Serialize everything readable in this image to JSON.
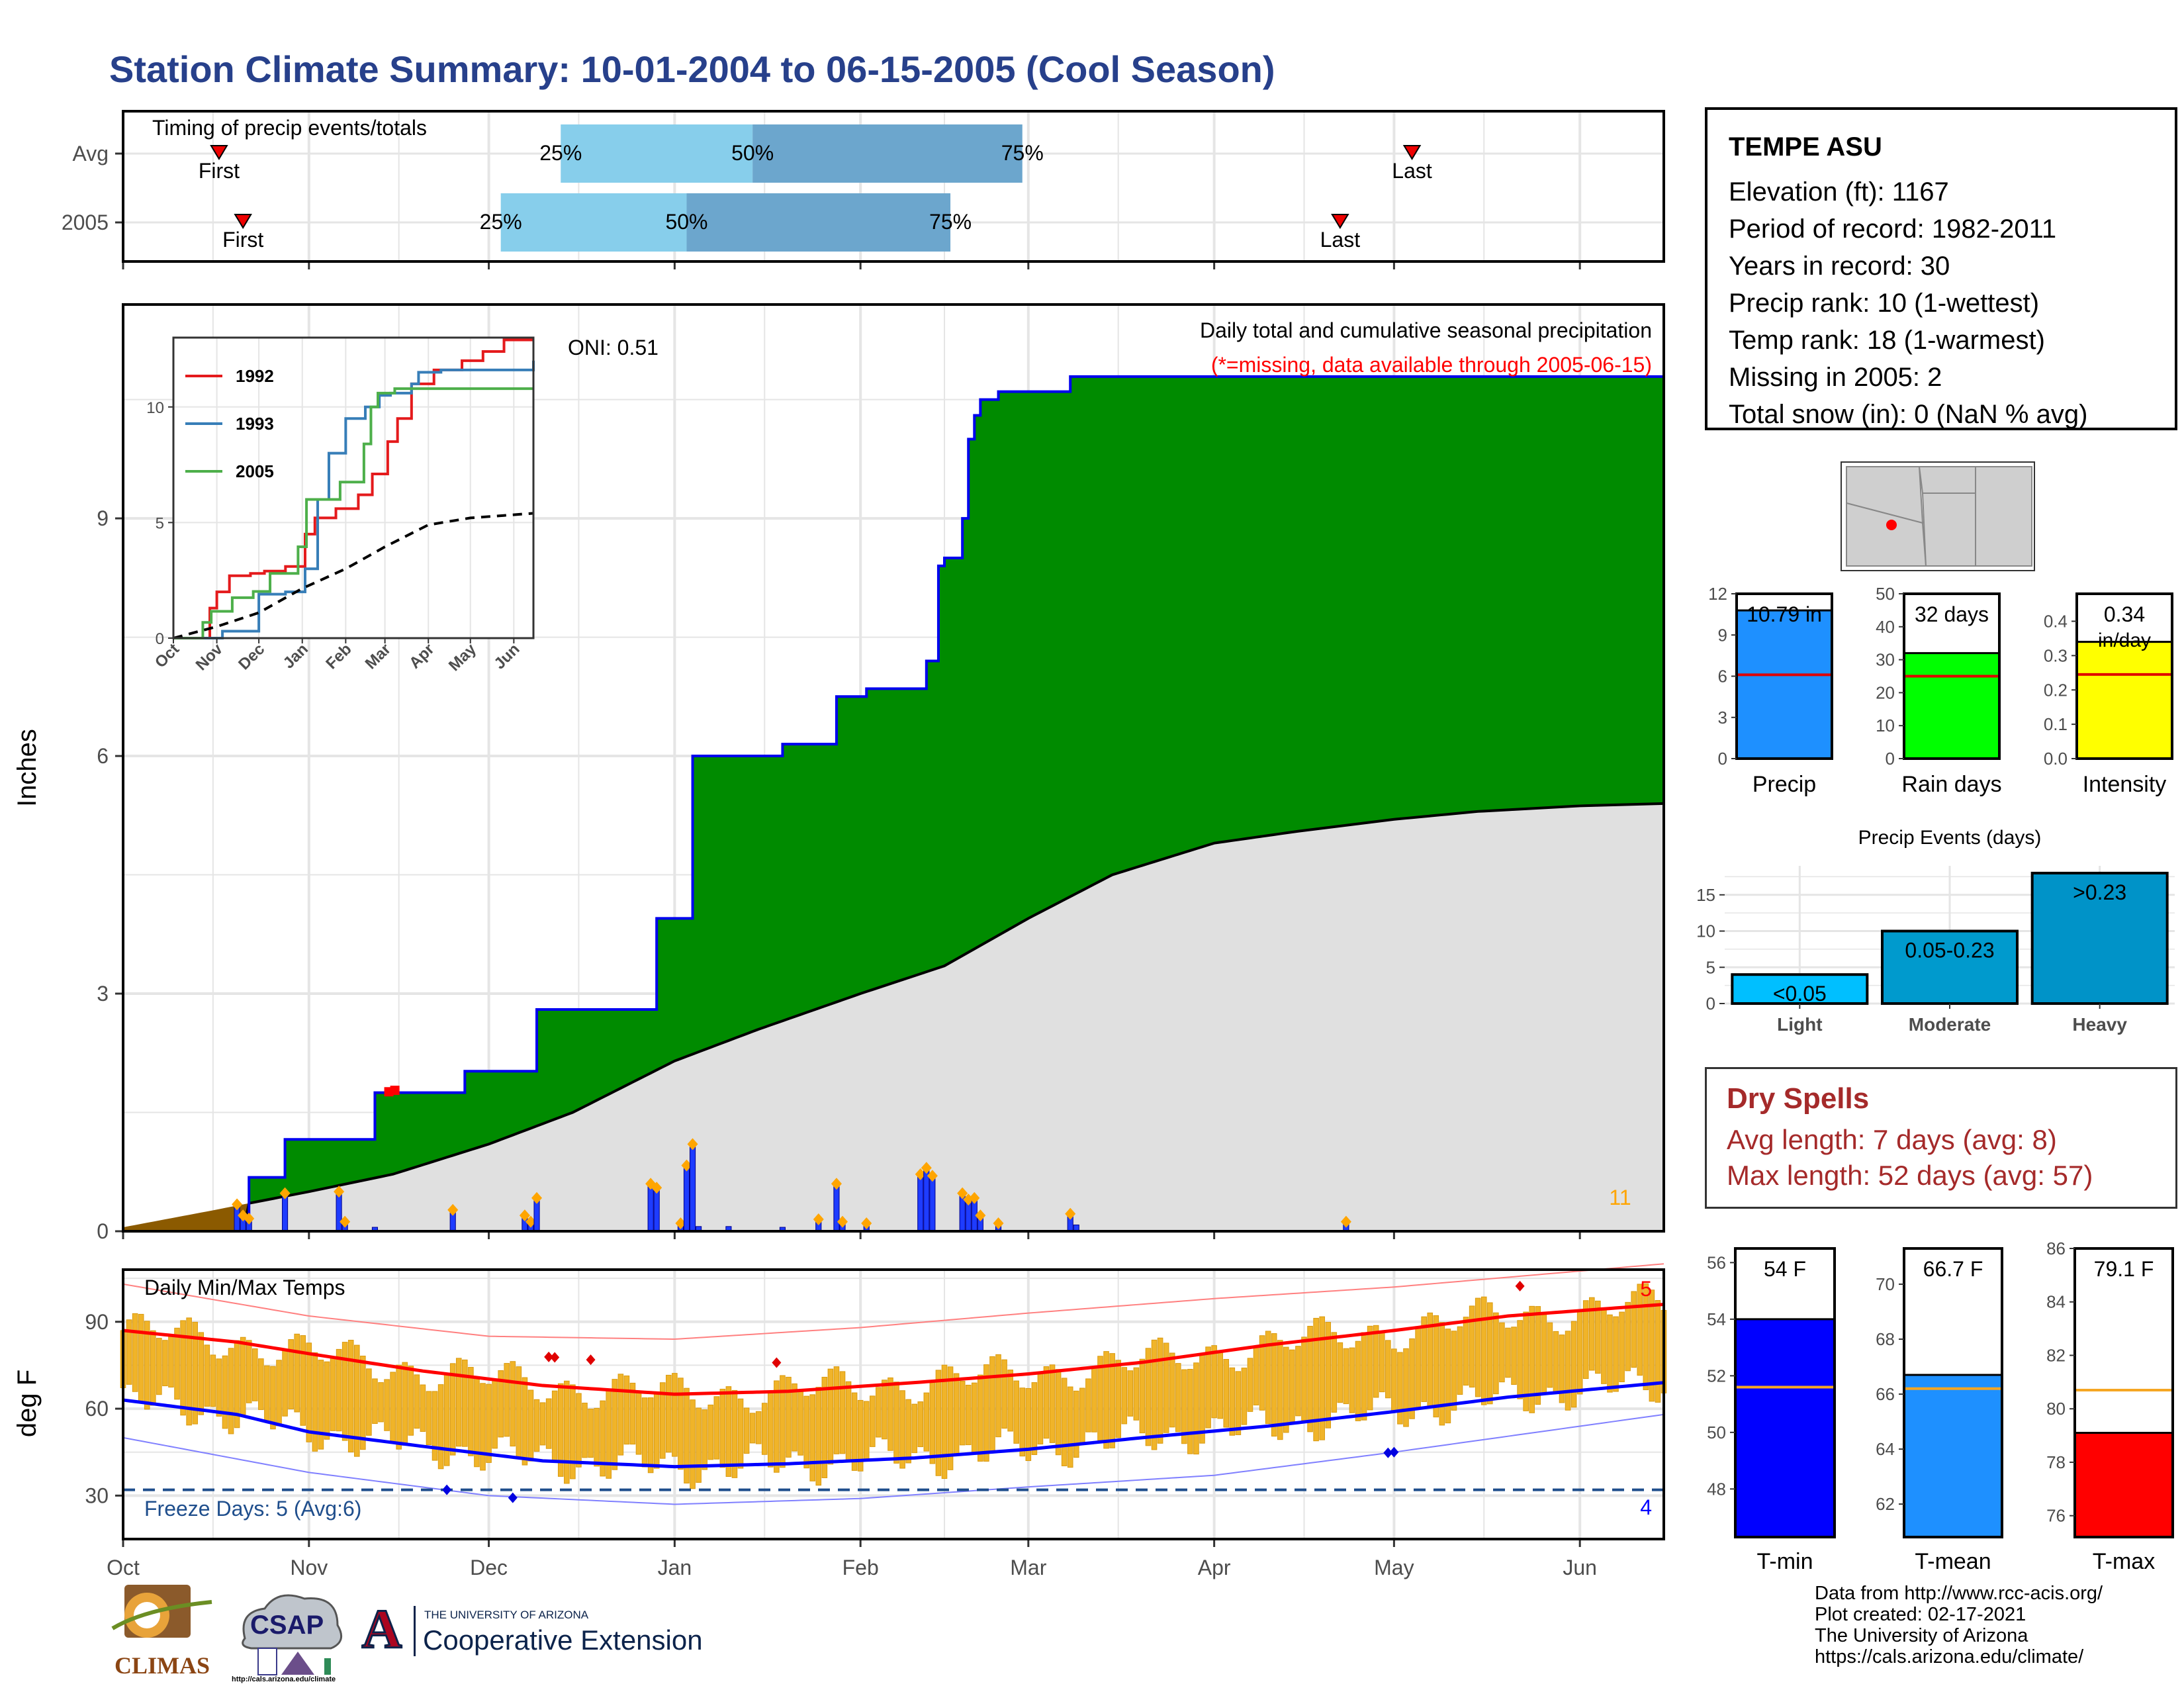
{
  "title": "Station Climate Summary: 10-01-2004 to 06-15-2005 (Cool Season)",
  "timing": {
    "label": "Timing of precip events/totals",
    "rows": [
      {
        "name": "Avg",
        "first": "2004-10-17",
        "q25": "2004-12-13",
        "q50": "2005-01-14",
        "q75": "2005-02-28",
        "last": "2005-05-04"
      },
      {
        "name": "2005",
        "first": "2004-10-21",
        "q25": "2004-12-03",
        "q50": "2005-01-03",
        "q75": "2005-02-16",
        "last": "2005-04-22"
      }
    ],
    "first_label": "First",
    "last_label": "Last",
    "q25_label": "25%",
    "q50_label": "50%",
    "q75_label": "75%"
  },
  "months": [
    "Oct",
    "Nov",
    "Dec",
    "Jan",
    "Feb",
    "Mar",
    "Apr",
    "May",
    "Jun"
  ],
  "chart_data": [
    {
      "type": "area",
      "title": "Daily total and cumulative seasonal precipitation",
      "subtitle": "(*=missing, data available through 2005-06-15)",
      "ylabel": "Inches",
      "ylim": [
        0,
        11.7
      ],
      "yticks": [
        0,
        3,
        6,
        9
      ],
      "oni_label": "ONI: 0.51",
      "corner_count": "11",
      "cumulative_2005_steps": [
        [
          "2004-10-01",
          0
        ],
        [
          "2004-10-22",
          0.68
        ],
        [
          "2004-10-28",
          1.16
        ],
        [
          "2004-11-12",
          1.75
        ],
        [
          "2004-11-27",
          2.02
        ],
        [
          "2004-12-09",
          2.8
        ],
        [
          "2004-12-29",
          3.95
        ],
        [
          "2005-01-04",
          6.0
        ],
        [
          "2005-01-19",
          6.15
        ],
        [
          "2005-01-28",
          6.75
        ],
        [
          "2005-02-02",
          6.85
        ],
        [
          "2005-02-12",
          7.2
        ],
        [
          "2005-02-14",
          8.4
        ],
        [
          "2005-02-15",
          8.5
        ],
        [
          "2005-02-18",
          9.0
        ],
        [
          "2005-02-19",
          10.0
        ],
        [
          "2005-02-20",
          10.3
        ],
        [
          "2005-02-21",
          10.5
        ],
        [
          "2005-02-24",
          10.6
        ],
        [
          "2005-03-08",
          10.79
        ],
        [
          "2005-04-24",
          10.79
        ],
        [
          "2005-06-15",
          10.79
        ]
      ],
      "avg_cumulative": [
        [
          "2004-10-01",
          0.05
        ],
        [
          "2004-10-15",
          0.25
        ],
        [
          "2004-11-01",
          0.5
        ],
        [
          "2004-11-15",
          0.72
        ],
        [
          "2004-12-01",
          1.1
        ],
        [
          "2004-12-15",
          1.5
        ],
        [
          "2005-01-01",
          2.15
        ],
        [
          "2005-01-15",
          2.55
        ],
        [
          "2005-02-01",
          3.0
        ],
        [
          "2005-02-15",
          3.35
        ],
        [
          "2005-03-01",
          3.95
        ],
        [
          "2005-03-15",
          4.5
        ],
        [
          "2005-04-01",
          4.9
        ],
        [
          "2005-04-15",
          5.05
        ],
        [
          "2005-05-01",
          5.2
        ],
        [
          "2005-05-15",
          5.3
        ],
        [
          "2005-06-01",
          5.37
        ],
        [
          "2005-06-15",
          5.4
        ]
      ],
      "daily_precip": [
        [
          "2004-10-20",
          0.34
        ],
        [
          "2004-10-21",
          0.2
        ],
        [
          "2004-10-22",
          0.16
        ],
        [
          "2004-10-28",
          0.48
        ],
        [
          "2004-11-06",
          0.5
        ],
        [
          "2004-11-07",
          0.12
        ],
        [
          "2004-11-12",
          0.05
        ],
        [
          "2004-11-25",
          0.27
        ],
        [
          "2004-12-07",
          0.2
        ],
        [
          "2004-12-08",
          0.12
        ],
        [
          "2004-12-09",
          0.42
        ],
        [
          "2004-12-28",
          0.6
        ],
        [
          "2004-12-29",
          0.55
        ],
        [
          "2005-01-02",
          0.1
        ],
        [
          "2005-01-03",
          0.83
        ],
        [
          "2005-01-04",
          1.1
        ],
        [
          "2005-01-05",
          0.06
        ],
        [
          "2005-01-10",
          0.06
        ],
        [
          "2005-01-19",
          0.05
        ],
        [
          "2005-01-25",
          0.15
        ],
        [
          "2005-01-28",
          0.6
        ],
        [
          "2005-01-29",
          0.12
        ],
        [
          "2005-02-02",
          0.1
        ],
        [
          "2005-02-11",
          0.72
        ],
        [
          "2005-02-12",
          0.8
        ],
        [
          "2005-02-13",
          0.7
        ],
        [
          "2005-02-18",
          0.48
        ],
        [
          "2005-02-19",
          0.4
        ],
        [
          "2005-02-20",
          0.42
        ],
        [
          "2005-02-21",
          0.2
        ],
        [
          "2005-02-24",
          0.1
        ],
        [
          "2005-03-08",
          0.22
        ],
        [
          "2005-03-09",
          0.08
        ],
        [
          "2005-04-23",
          0.12
        ]
      ],
      "missing_days": [
        "2004-11-14",
        "2004-11-15"
      ],
      "inset": {
        "series": [
          {
            "name": "1992",
            "color": "#E41A1C",
            "steps": [
              [
                "2004-10-01",
                0
              ],
              [
                "2004-10-27",
                1.3
              ],
              [
                "2004-11-01",
                2.0
              ],
              [
                "2004-11-10",
                2.7
              ],
              [
                "2004-11-25",
                2.8
              ],
              [
                "2004-12-05",
                2.9
              ],
              [
                "2004-12-20",
                3.1
              ],
              [
                "2005-01-03",
                4.5
              ],
              [
                "2005-01-10",
                5.2
              ],
              [
                "2005-01-25",
                5.6
              ],
              [
                "2005-02-10",
                6.2
              ],
              [
                "2005-02-20",
                7.1
              ],
              [
                "2005-03-03",
                8.5
              ],
              [
                "2005-03-10",
                9.5
              ],
              [
                "2005-03-20",
                11.0
              ],
              [
                "2005-04-05",
                11.6
              ],
              [
                "2005-04-25",
                12.0
              ],
              [
                "2005-05-10",
                12.4
              ],
              [
                "2005-05-25",
                12.9
              ],
              [
                "2005-06-15",
                12.9
              ]
            ]
          },
          {
            "name": "1993",
            "color": "#377EB8",
            "steps": [
              [
                "2004-10-01",
                0
              ],
              [
                "2004-11-05",
                0.3
              ],
              [
                "2004-12-01",
                1.9
              ],
              [
                "2004-12-20",
                2.0
              ],
              [
                "2005-01-03",
                3.0
              ],
              [
                "2005-01-12",
                6.0
              ],
              [
                "2005-01-20",
                8.0
              ],
              [
                "2005-02-01",
                9.5
              ],
              [
                "2005-02-15",
                10.0
              ],
              [
                "2005-02-25",
                10.5
              ],
              [
                "2005-03-05",
                10.6
              ],
              [
                "2005-03-20",
                11.0
              ],
              [
                "2005-03-25",
                11.5
              ],
              [
                "2005-04-10",
                11.6
              ],
              [
                "2005-06-15",
                12.0
              ]
            ]
          },
          {
            "name": "2005",
            "color": "#4DAF4A",
            "steps": [
              [
                "2004-10-01",
                0
              ],
              [
                "2004-10-22",
                0.68
              ],
              [
                "2004-10-28",
                1.16
              ],
              [
                "2004-11-12",
                1.75
              ],
              [
                "2004-11-27",
                2.02
              ],
              [
                "2004-12-09",
                2.8
              ],
              [
                "2004-12-29",
                3.95
              ],
              [
                "2005-01-04",
                6.0
              ],
              [
                "2005-01-28",
                6.75
              ],
              [
                "2005-02-14",
                8.4
              ],
              [
                "2005-02-19",
                10.0
              ],
              [
                "2005-02-24",
                10.6
              ],
              [
                "2005-03-08",
                10.79
              ],
              [
                "2005-06-15",
                10.79
              ]
            ]
          }
        ],
        "avg_line": [
          [
            "2004-10-01",
            0
          ],
          [
            "2004-11-01",
            0.5
          ],
          [
            "2004-12-01",
            1.1
          ],
          [
            "2005-01-01",
            2.15
          ],
          [
            "2005-02-01",
            3.0
          ],
          [
            "2005-03-01",
            3.95
          ],
          [
            "2005-04-01",
            4.9
          ],
          [
            "2005-05-01",
            5.2
          ],
          [
            "2005-06-15",
            5.4
          ]
        ],
        "yticks": [
          0,
          5,
          10
        ],
        "ylim": [
          0,
          13
        ],
        "months": [
          "Oct",
          "Nov",
          "Dec",
          "Jan",
          "Feb",
          "Mar",
          "Apr",
          "May",
          "Jun"
        ]
      }
    },
    {
      "type": "bar",
      "title": "Daily Min/Max Temps",
      "ylabel": "deg F",
      "ylim": [
        15,
        108
      ],
      "yticks": [
        30,
        60,
        90
      ],
      "freeze_label": "Freeze Days: 5 (Avg:6)",
      "freeze_line": 32,
      "record_high_count": "5",
      "record_low_count": "4",
      "avg_max": [
        [
          "2004-10-01",
          87
        ],
        [
          "2004-10-20",
          83
        ],
        [
          "2004-11-01",
          79
        ],
        [
          "2004-11-20",
          73
        ],
        [
          "2004-12-10",
          68
        ],
        [
          "2005-01-01",
          65
        ],
        [
          "2005-01-20",
          66
        ],
        [
          "2005-02-10",
          69
        ],
        [
          "2005-03-01",
          72
        ],
        [
          "2005-03-20",
          76
        ],
        [
          "2005-04-10",
          82
        ],
        [
          "2005-05-01",
          87
        ],
        [
          "2005-05-20",
          92
        ],
        [
          "2005-06-15",
          96
        ]
      ],
      "avg_min": [
        [
          "2004-10-01",
          63
        ],
        [
          "2004-10-20",
          58
        ],
        [
          "2004-11-01",
          52
        ],
        [
          "2004-11-20",
          47
        ],
        [
          "2004-12-10",
          42
        ],
        [
          "2005-01-01",
          40
        ],
        [
          "2005-01-20",
          41
        ],
        [
          "2005-02-10",
          43
        ],
        [
          "2005-03-01",
          46
        ],
        [
          "2005-03-20",
          50
        ],
        [
          "2005-04-10",
          54
        ],
        [
          "2005-05-01",
          59
        ],
        [
          "2005-05-20",
          64
        ],
        [
          "2005-06-15",
          69
        ]
      ],
      "record_high": [
        [
          "2004-10-01",
          103
        ],
        [
          "2004-11-01",
          92
        ],
        [
          "2004-12-01",
          85
        ],
        [
          "2005-01-01",
          84
        ],
        [
          "2005-02-01",
          88
        ],
        [
          "2005-03-01",
          93
        ],
        [
          "2005-04-01",
          98
        ],
        [
          "2005-05-01",
          102
        ],
        [
          "2005-06-15",
          110
        ]
      ],
      "record_low": [
        [
          "2004-10-01",
          50
        ],
        [
          "2004-11-01",
          38
        ],
        [
          "2004-12-01",
          30
        ],
        [
          "2005-01-01",
          27
        ],
        [
          "2005-02-01",
          29
        ],
        [
          "2005-03-01",
          33
        ],
        [
          "2005-04-01",
          37
        ],
        [
          "2005-05-01",
          45
        ],
        [
          "2005-06-15",
          58
        ]
      ]
    },
    {
      "type": "bar",
      "name": "Precip",
      "categories": [
        "Precip"
      ],
      "values": [
        10.79
      ],
      "avg": 6.1,
      "ylim": [
        0,
        12
      ],
      "yticks": [
        0,
        3,
        6,
        9,
        12
      ],
      "label": "10.79 in",
      "color": "#1E90FF"
    },
    {
      "type": "bar",
      "name": "Rain days",
      "categories": [
        "Rain days"
      ],
      "values": [
        32
      ],
      "avg": 25,
      "ylim": [
        0,
        50
      ],
      "yticks": [
        0,
        10,
        20,
        30,
        40,
        50
      ],
      "label": "32 days",
      "color": "#00FF00"
    },
    {
      "type": "bar",
      "name": "Intensity",
      "categories": [
        "Intensity"
      ],
      "values": [
        0.34
      ],
      "avg": 0.245,
      "ylim": [
        0,
        0.48
      ],
      "yticks": [
        0.0,
        0.1,
        0.2,
        0.3,
        0.4
      ],
      "label": "0.34",
      "label2": "in/day",
      "color": "#FFFF00"
    },
    {
      "type": "bar",
      "title": "Precip Events (days)",
      "categories": [
        "Light",
        "Moderate",
        "Heavy"
      ],
      "values": [
        4,
        10,
        18
      ],
      "labels": [
        "<0.05",
        "0.05-0.23",
        ">0.23"
      ],
      "colors": [
        "#00BFFF",
        "#009ACD",
        "#0093C8"
      ],
      "ylim": [
        0,
        19
      ],
      "yticks": [
        0,
        5,
        10,
        15
      ]
    },
    {
      "type": "bar",
      "name": "T-min",
      "categories": [
        "T-min"
      ],
      "values": [
        54
      ],
      "avg": 51.6,
      "ylim": [
        46.3,
        56.5
      ],
      "yticks": [
        48,
        50,
        52,
        54,
        56
      ],
      "label": "54 F",
      "color": "#0000FF"
    },
    {
      "type": "bar",
      "name": "T-mean",
      "categories": [
        "T-mean"
      ],
      "values": [
        66.7
      ],
      "avg": 66.2,
      "ylim": [
        60.8,
        71.3
      ],
      "yticks": [
        62,
        64,
        66,
        68,
        70
      ],
      "label": "66.7 F",
      "color": "#1E90FF"
    },
    {
      "type": "bar",
      "name": "T-max",
      "categories": [
        "T-max"
      ],
      "values": [
        79.1
      ],
      "avg": 80.7,
      "ylim": [
        75.2,
        86.0
      ],
      "yticks": [
        76,
        78,
        80,
        82,
        84,
        86
      ],
      "label": "79.1 F",
      "color": "#FF0000"
    }
  ],
  "station": {
    "name": "TEMPE ASU",
    "lines": [
      "Elevation (ft): 1167",
      "Period of record: 1982-2011",
      "Years in record: 30",
      "Precip rank: 10 (1-wettest)",
      "Temp rank: 18 (1-warmest)",
      "Missing in 2005: 2",
      "Total snow (in): 0 (NaN % avg)"
    ]
  },
  "dry_spells": {
    "title": "Dry Spells",
    "avg_line": "Avg length: 7 days (avg: 8)",
    "max_line": "Max length: 52 days (avg: 57)"
  },
  "logos": {
    "climas": "CLIMAS",
    "csap": "CSAP",
    "csap_url": "http://cals.arizona.edu/climate",
    "ua_small": "THE UNIVERSITY OF ARIZONA",
    "ua_big": "Cooperative Extension",
    "ua_letter": "A"
  },
  "footer": [
    "Data from http://www.rcc-acis.org/",
    "Plot created: 02-17-2021",
    "The University of Arizona",
    "https://cals.arizona.edu/climate/"
  ]
}
